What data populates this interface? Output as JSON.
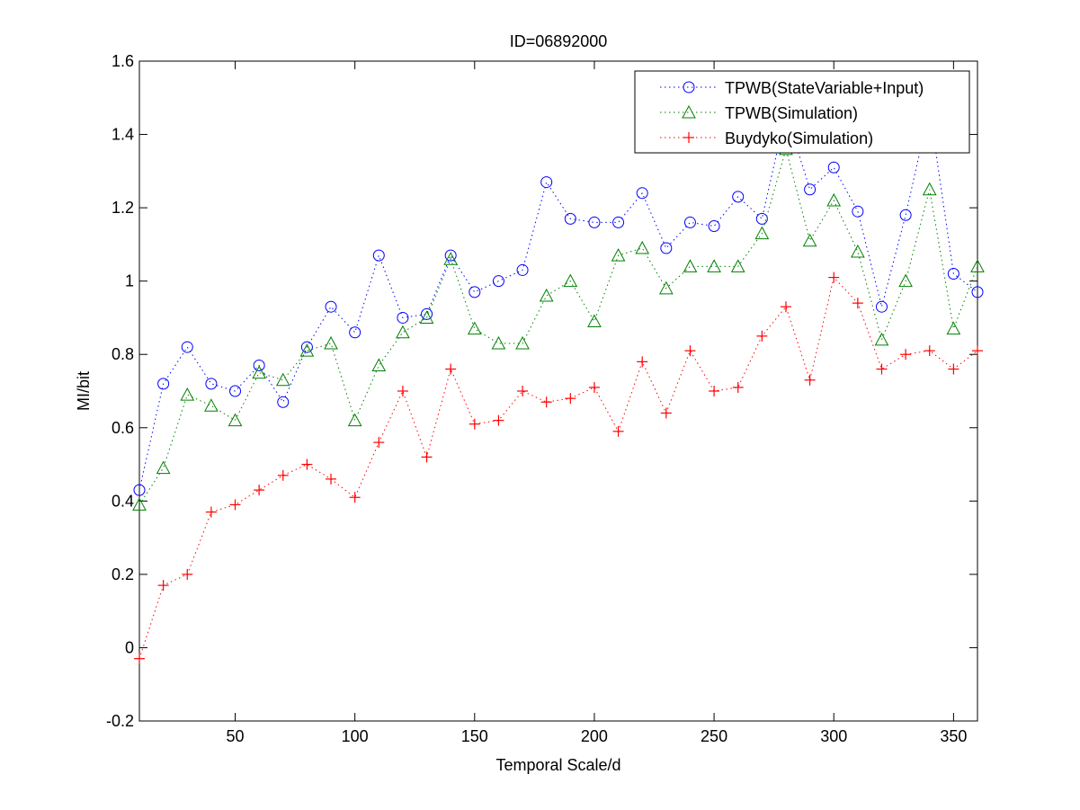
{
  "chart_data": {
    "type": "line",
    "title": "ID=06892000",
    "xlabel": "Temporal Scale/d",
    "ylabel": "MI/bit",
    "xlim": [
      10,
      360
    ],
    "ylim": [
      -0.2,
      1.6
    ],
    "xticks": [
      50,
      100,
      150,
      200,
      250,
      300,
      350
    ],
    "yticks": [
      -0.2,
      0,
      0.2,
      0.4,
      0.6,
      0.8,
      1,
      1.2,
      1.4,
      1.6
    ],
    "ytick_labels": [
      "-0.2",
      "0",
      "0.2",
      "0.4",
      "0.6",
      "0.8",
      "1",
      "1.2",
      "1.4",
      "1.6"
    ],
    "grid": false,
    "legend_position": "top-right",
    "x": [
      10,
      20,
      30,
      40,
      50,
      60,
      70,
      80,
      90,
      100,
      110,
      120,
      130,
      140,
      150,
      160,
      170,
      180,
      190,
      200,
      210,
      220,
      230,
      240,
      250,
      260,
      270,
      280,
      290,
      300,
      310,
      320,
      330,
      340,
      350,
      360
    ],
    "series": [
      {
        "name": "TPWB(StateVariable+Input)",
        "color": "#0000ff",
        "marker": "circle",
        "values": [
          0.43,
          0.72,
          0.82,
          0.72,
          0.7,
          0.77,
          0.67,
          0.82,
          0.93,
          0.86,
          1.07,
          0.9,
          0.91,
          1.07,
          0.97,
          1.0,
          1.03,
          1.27,
          1.17,
          1.16,
          1.16,
          1.24,
          1.09,
          1.16,
          1.15,
          1.23,
          1.17,
          1.46,
          1.25,
          1.31,
          1.19,
          0.93,
          1.18,
          1.47,
          1.02,
          0.97
        ]
      },
      {
        "name": "TPWB(Simulation)",
        "color": "#008000",
        "marker": "triangle",
        "values": [
          0.39,
          0.49,
          0.69,
          0.66,
          0.62,
          0.75,
          0.73,
          0.81,
          0.83,
          0.62,
          0.77,
          0.86,
          0.9,
          1.06,
          0.87,
          0.83,
          0.83,
          0.96,
          1.0,
          0.89,
          1.07,
          1.09,
          0.98,
          1.04,
          1.04,
          1.04,
          1.13,
          1.36,
          1.11,
          1.22,
          1.08,
          0.84,
          1.0,
          1.25,
          0.87,
          1.04
        ]
      },
      {
        "name": "Buydyko(Simulation)",
        "color": "#ff0000",
        "marker": "plus",
        "values": [
          -0.03,
          0.17,
          0.2,
          0.37,
          0.39,
          0.43,
          0.47,
          0.5,
          0.46,
          0.41,
          0.56,
          0.7,
          0.52,
          0.76,
          0.61,
          0.62,
          0.7,
          0.67,
          0.68,
          0.71,
          0.59,
          0.78,
          0.64,
          0.81,
          0.7,
          0.71,
          0.85,
          0.93,
          0.73,
          1.01,
          0.94,
          0.76,
          0.8,
          0.81,
          0.76,
          0.81
        ]
      }
    ]
  }
}
